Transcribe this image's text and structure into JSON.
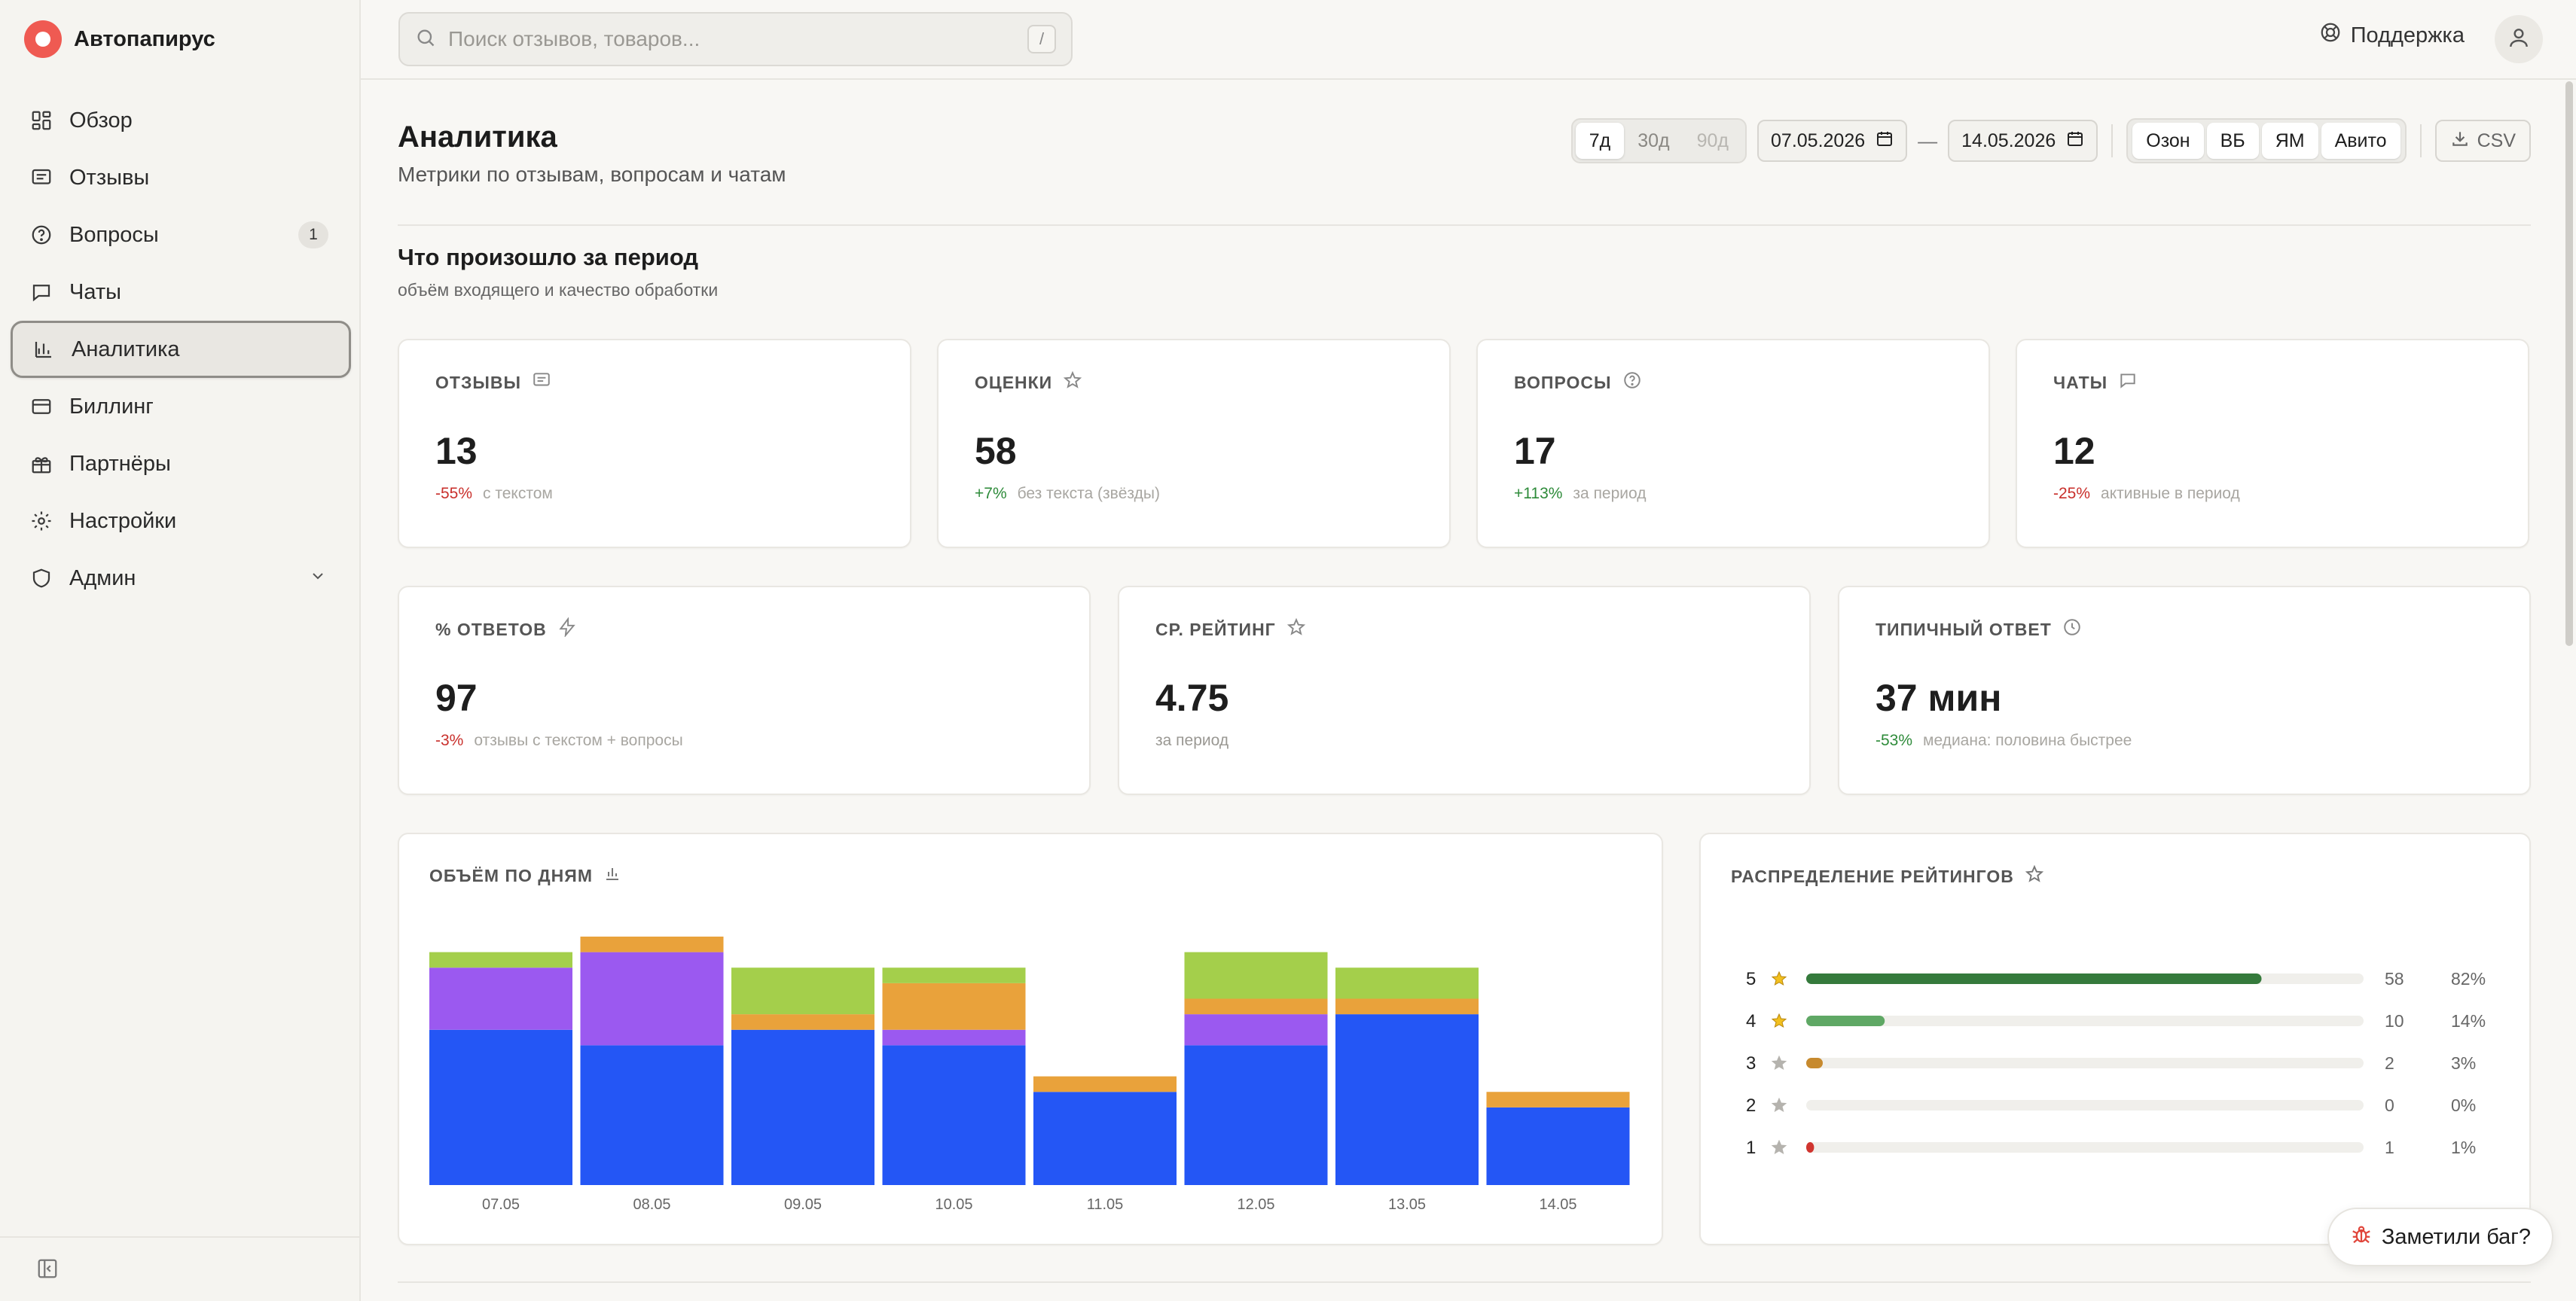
{
  "app": {
    "name": "Автопапирус"
  },
  "sidebar": {
    "items": [
      {
        "label": "Обзор",
        "icon": "dashboard-icon"
      },
      {
        "label": "Отзывы",
        "icon": "message-icon"
      },
      {
        "label": "Вопросы",
        "icon": "question-icon",
        "badge": "1"
      },
      {
        "label": "Чаты",
        "icon": "chat-icon"
      },
      {
        "label": "Аналитика",
        "icon": "bar-chart-icon",
        "active": true
      },
      {
        "label": "Биллинг",
        "icon": "card-icon"
      },
      {
        "label": "Партнёры",
        "icon": "gift-icon"
      },
      {
        "label": "Настройки",
        "icon": "gear-icon"
      },
      {
        "label": "Админ",
        "icon": "shield-icon",
        "expandable": true
      }
    ]
  },
  "topbar": {
    "search_placeholder": "Поиск отзывов, товаров...",
    "search_shortcut": "/",
    "support_label": "Поддержка"
  },
  "page": {
    "title": "Аналитика",
    "subtitle": "Метрики по отзывам, вопросам и чатам"
  },
  "controls": {
    "periods": [
      "7д",
      "30д",
      "90д"
    ],
    "active_period": "7д",
    "date_from": "07.05.2026",
    "date_sep": "—",
    "date_to": "14.05.2026",
    "marketplaces": [
      "Озон",
      "ВБ",
      "ЯМ",
      "Авито"
    ],
    "export_label": "CSV"
  },
  "section": {
    "title": "Что произошло за период",
    "subtitle": "объём входящего и качество обработки"
  },
  "metrics_row1": [
    {
      "label": "ОТЗЫВЫ",
      "icon": "message-icon",
      "value": "13",
      "delta": "-55%",
      "delta_kind": "neg",
      "note": "с текстом"
    },
    {
      "label": "ОЦЕНКИ",
      "icon": "star-icon",
      "value": "58",
      "delta": "+7%",
      "delta_kind": "pos",
      "note": "без текста (звёзды)"
    },
    {
      "label": "ВОПРОСЫ",
      "icon": "question-icon",
      "value": "17",
      "delta": "+113%",
      "delta_kind": "pos",
      "note": "за период"
    },
    {
      "label": "ЧАТЫ",
      "icon": "chat-icon",
      "value": "12",
      "delta": "-25%",
      "delta_kind": "neg",
      "note": "активные в период"
    }
  ],
  "metrics_row2": [
    {
      "label": "% ОТВЕТОВ",
      "icon": "bolt-icon",
      "value": "97",
      "delta": "-3%",
      "delta_kind": "neg",
      "note": "отзывы с текстом + вопросы"
    },
    {
      "label": "СР. РЕЙТИНГ",
      "icon": "star-icon",
      "value": "4.75",
      "delta": "",
      "delta_kind": "",
      "note": "за период"
    },
    {
      "label": "ТИПИЧНЫЙ ОТВЕТ",
      "icon": "clock-icon",
      "value": "37 мин",
      "delta": "-53%",
      "delta_kind": "pos",
      "note": "медиана: половина быстрее"
    }
  ],
  "volume_chart": {
    "title": "ОБЪЁМ ПО ДНЯМ",
    "icon": "bar-chart-icon"
  },
  "ratings_chart": {
    "title": "РАСПРЕДЕЛЕНИЕ РЕЙТИНГОВ",
    "icon": "star-icon"
  },
  "chart_data": [
    {
      "type": "bar",
      "stacked": true,
      "title": "ОБЪЁМ ПО ДНЯМ",
      "categories": [
        "07.05",
        "08.05",
        "09.05",
        "10.05",
        "11.05",
        "12.05",
        "13.05",
        "14.05"
      ],
      "series": [
        {
          "color": "#2456f5",
          "values": [
            10,
            9,
            10,
            9,
            6,
            9,
            11,
            5
          ]
        },
        {
          "color": "#9b59f0",
          "values": [
            4,
            6,
            0,
            1,
            0,
            2,
            0,
            0
          ]
        },
        {
          "color": "#e9a23b",
          "values": [
            0,
            1,
            1,
            3,
            1,
            1,
            1,
            1
          ]
        },
        {
          "color": "#a4cf4b",
          "values": [
            1,
            0,
            3,
            1,
            0,
            3,
            2,
            0
          ]
        }
      ],
      "ylim": [
        0,
        16
      ]
    },
    {
      "type": "bar",
      "orientation": "horizontal",
      "title": "РАСПРЕДЕЛЕНИЕ РЕЙТИНГОВ",
      "categories": [
        "5",
        "4",
        "3",
        "2",
        "1"
      ],
      "values": [
        58,
        10,
        2,
        0,
        1
      ],
      "percents": [
        "82%",
        "14%",
        "3%",
        "0%",
        "1%"
      ],
      "colors": [
        "#357a3c",
        "#5fa865",
        "#c78a2e",
        "#c78a2e",
        "#d0352f"
      ],
      "star_colors": [
        "#f2c01f",
        "#f2c01f",
        "#b5b3ae",
        "#b5b3ae",
        "#b5b3ae"
      ]
    }
  ],
  "bug_report": {
    "label": "Заметили баг?"
  }
}
